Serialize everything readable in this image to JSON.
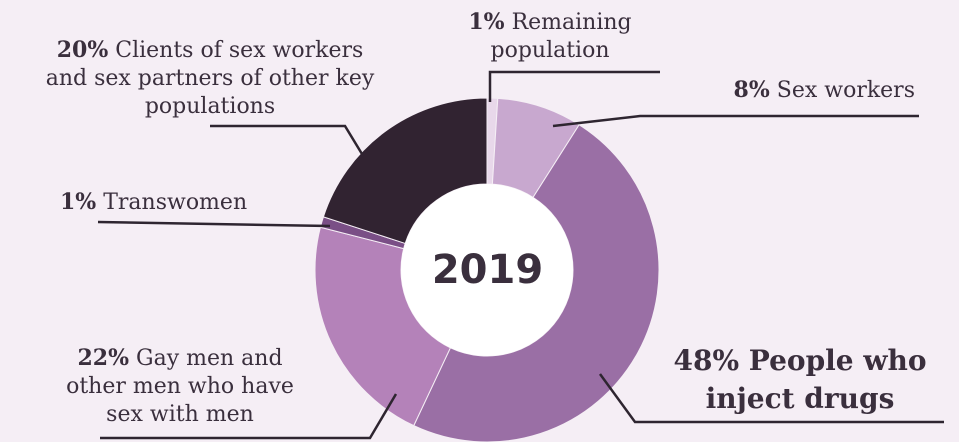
{
  "chart_data": {
    "type": "pie",
    "variant": "donut",
    "center_label": "2019",
    "slices": [
      {
        "pct": "1%",
        "value": 1,
        "label": "Remaining population",
        "color": "#e8d8ea"
      },
      {
        "pct": "8%",
        "value": 8,
        "label": "Sex workers",
        "color": "#c8a8cf"
      },
      {
        "pct": "48%",
        "value": 48,
        "label": "People who inject drugs",
        "color": "#9a6fa5"
      },
      {
        "pct": "22%",
        "value": 22,
        "label": "Gay men and other men who have sex with men",
        "color": "#b482b9"
      },
      {
        "pct": "1%",
        "value": 1,
        "label": "Transwomen",
        "color": "#7a4f86"
      },
      {
        "pct": "20%",
        "value": 20,
        "label": "Clients of sex workers and sex partners of other key populations",
        "color": "#312331"
      }
    ]
  },
  "labels": {
    "remaining": {
      "pct": "1%",
      "line1": "Remaining",
      "line2": "population"
    },
    "sexworkers": {
      "pct": "8%",
      "text": "Sex workers"
    },
    "pwid": {
      "line1": "48% People who",
      "line2": "inject drugs"
    },
    "gay": {
      "pct": "22%",
      "line1": "Gay men and",
      "line2": "other men who have",
      "line3": "sex with men"
    },
    "trans": {
      "pct": "1%",
      "text": "Transwomen"
    },
    "clients": {
      "pct": "20%",
      "line1": "Clients of sex workers",
      "line2": "and sex partners of other key",
      "line3": "populations"
    }
  }
}
